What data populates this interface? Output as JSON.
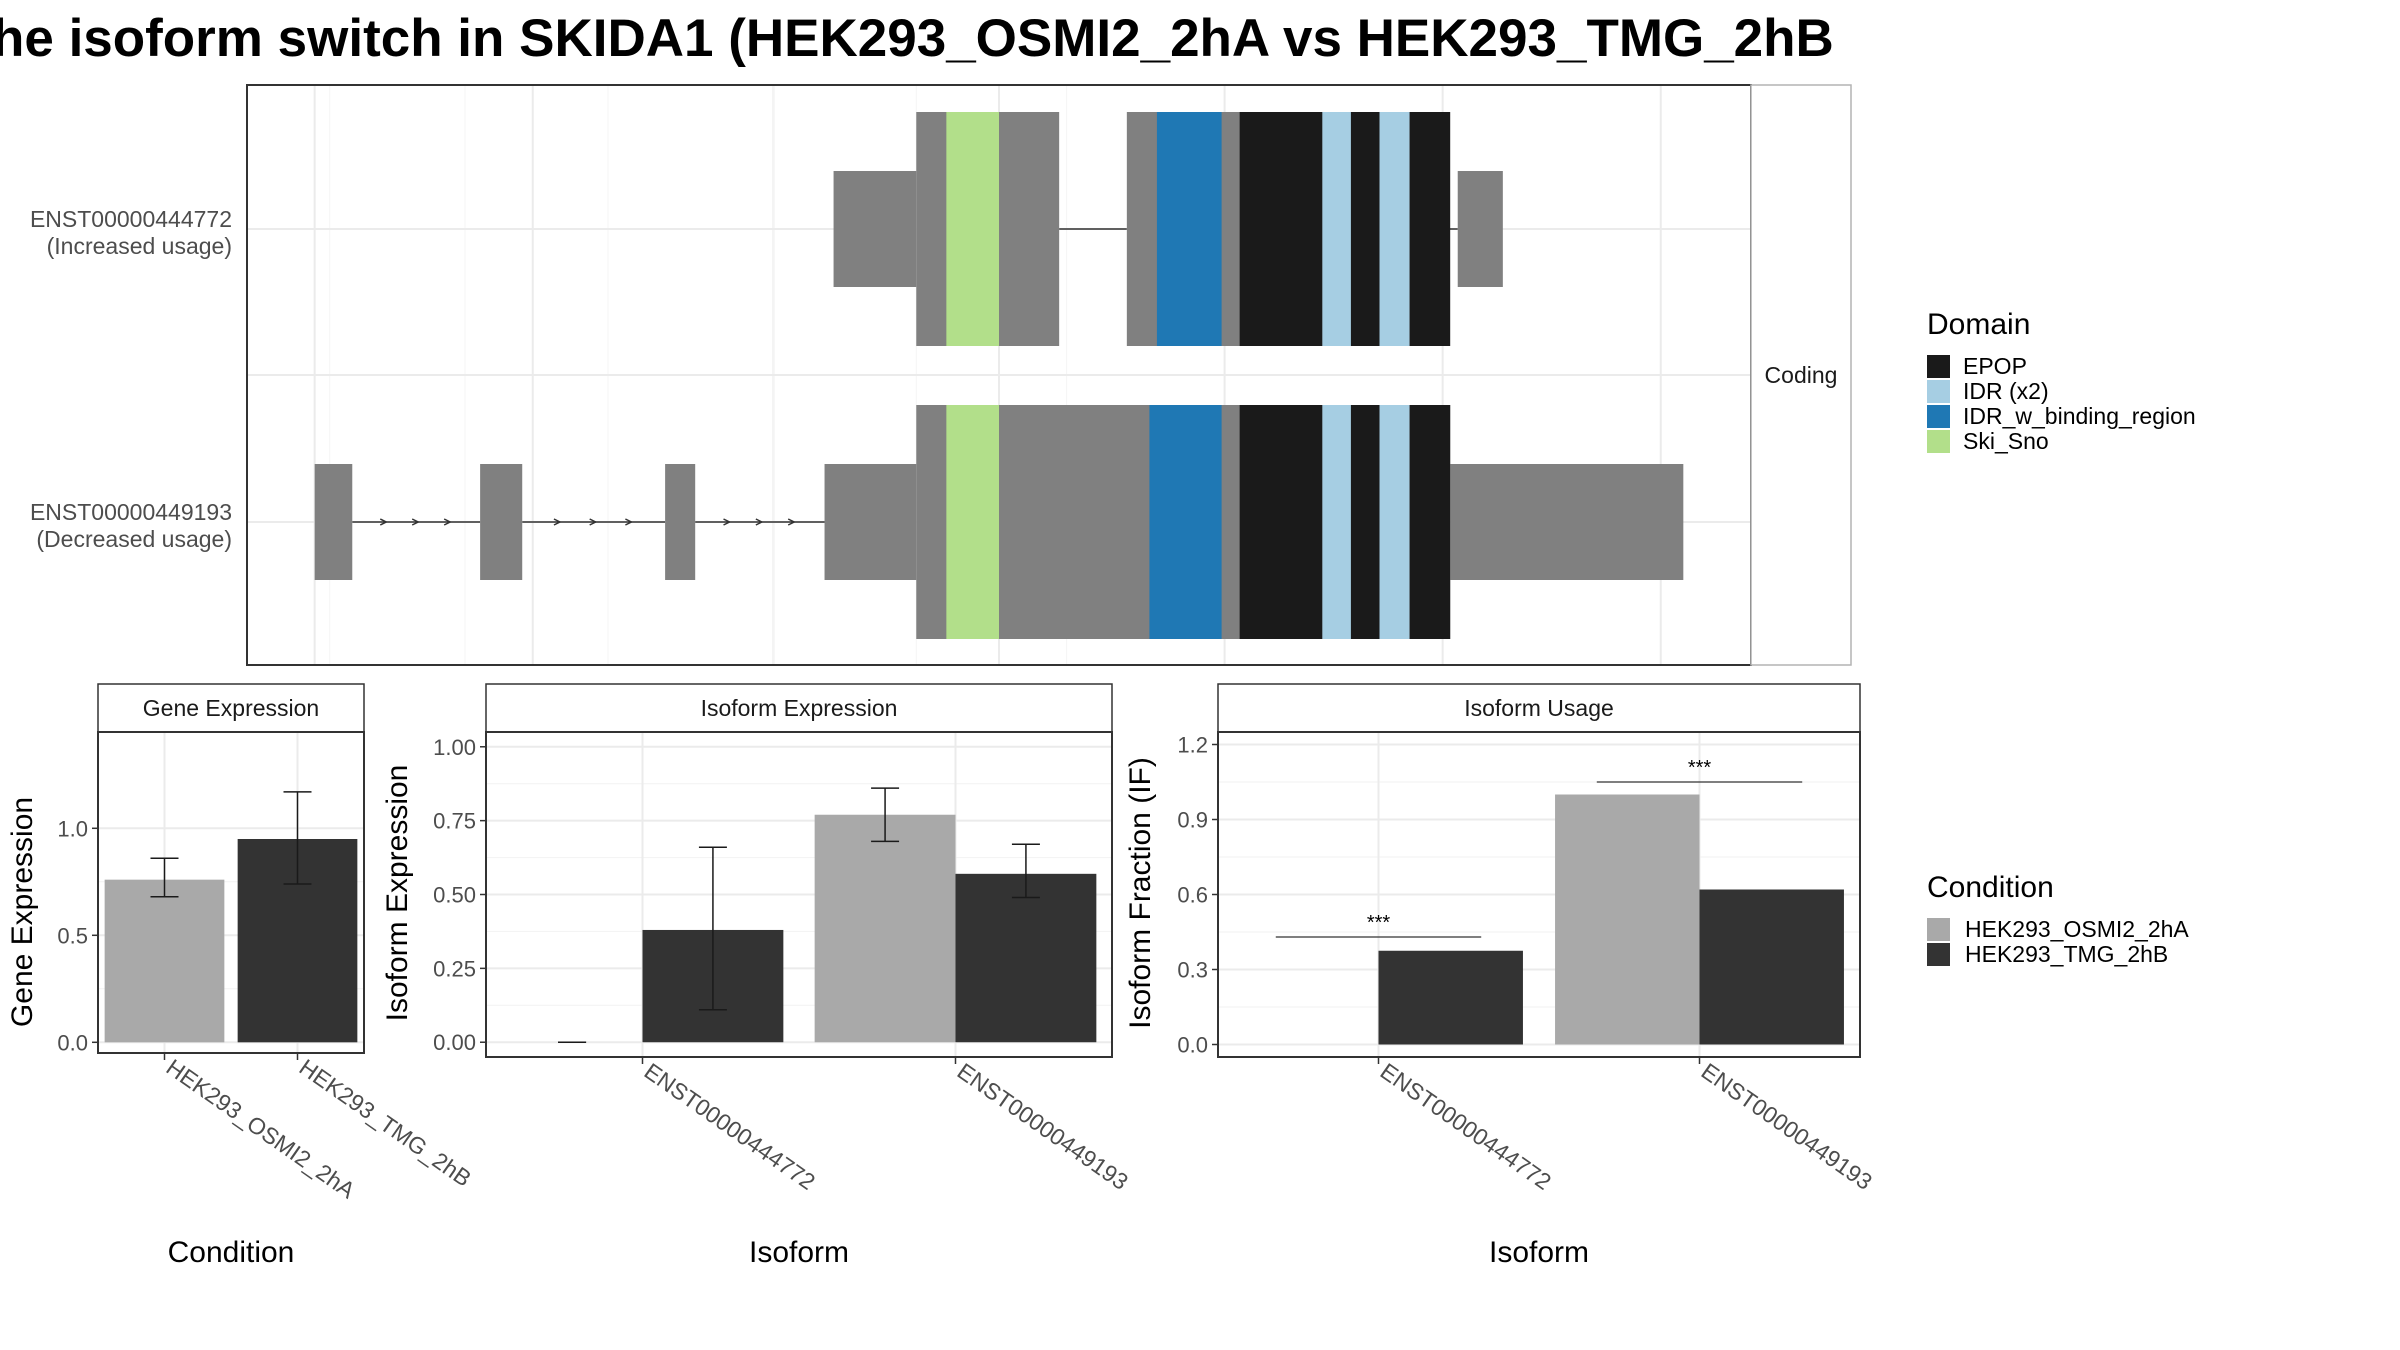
{
  "title": "he isoform switch in SKIDA1 (HEK293_OSMI2_2hA vs HEK293_TMG_2hB",
  "colors": {
    "EPOP": "#1a1a1a",
    "IDR (x2)": "#a6cee3",
    "IDR_w_binding_region": "#1f78b4",
    "Ski_Sno": "#b2df8a",
    "exon": "#808080",
    "cond1": "#a9a9a9",
    "cond2": "#333333"
  },
  "chart_data": [
    {
      "type": "gene-structure",
      "facet_label": "Coding",
      "transcripts": [
        {
          "id": "ENST00000444772",
          "label": "(Increased usage)",
          "utr": [
            [
              0.39,
              0.445
            ],
            [
              0.805,
              0.835
            ]
          ],
          "cds": [
            [
              0.445,
              0.54
            ],
            [
              0.585,
              0.795
            ]
          ],
          "domains": [
            {
              "name": "Ski_Sno",
              "range": [
                0.465,
                0.5
              ]
            },
            {
              "name": "IDR_w_binding_region",
              "range": [
                0.605,
                0.648
              ]
            },
            {
              "name": "EPOP",
              "range": [
                0.66,
                0.715
              ]
            },
            {
              "name": "IDR (x2)",
              "range": [
                0.715,
                0.734
              ]
            },
            {
              "name": "EPOP",
              "range": [
                0.734,
                0.753
              ]
            },
            {
              "name": "IDR (x2)",
              "range": [
                0.753,
                0.773
              ]
            },
            {
              "name": "EPOP",
              "range": [
                0.773,
                0.8
              ]
            }
          ]
        },
        {
          "id": "ENST00000449193",
          "label": "(Decreased usage)",
          "utr": [
            [
              0.045,
              0.07
            ],
            [
              0.155,
              0.183
            ],
            [
              0.278,
              0.298
            ],
            [
              0.384,
              0.445
            ],
            [
              0.8,
              0.955
            ]
          ],
          "cds": [
            [
              0.445,
              0.8
            ]
          ],
          "domains": [
            {
              "name": "Ski_Sno",
              "range": [
                0.465,
                0.5
              ]
            },
            {
              "name": "IDR_w_binding_region",
              "range": [
                0.6,
                0.648
              ]
            },
            {
              "name": "EPOP",
              "range": [
                0.66,
                0.715
              ]
            },
            {
              "name": "IDR (x2)",
              "range": [
                0.715,
                0.734
              ]
            },
            {
              "name": "EPOP",
              "range": [
                0.734,
                0.753
              ]
            },
            {
              "name": "IDR (x2)",
              "range": [
                0.753,
                0.773
              ]
            },
            {
              "name": "EPOP",
              "range": [
                0.773,
                0.8
              ]
            }
          ]
        }
      ],
      "legend": {
        "title": "Domain",
        "entries": [
          "EPOP",
          "IDR (x2)",
          "IDR_w_binding_region",
          "Ski_Sno"
        ],
        "placement": "right"
      }
    },
    {
      "type": "bar",
      "title": "Gene Expression",
      "xlabel": "Condition",
      "ylabel": "Gene Expression",
      "ylim": [
        -0.05,
        1.45
      ],
      "yticks": [
        0.0,
        0.5,
        1.0
      ],
      "ytick_labels": [
        "0.0",
        "0.5",
        "1.0"
      ],
      "categories": [
        "HEK293_OSMI2_2hA",
        "HEK293_TMG_2hB"
      ],
      "values": [
        0.76,
        0.95
      ],
      "errors": [
        [
          0.68,
          0.86
        ],
        [
          0.74,
          1.17
        ]
      ],
      "grid": true
    },
    {
      "type": "bar",
      "title": "Isoform Expression",
      "xlabel": "Isoform",
      "ylabel": "Isoform Expression",
      "ylim": [
        -0.05,
        1.05
      ],
      "yticks": [
        0.0,
        0.25,
        0.5,
        0.75,
        1.0
      ],
      "ytick_labels": [
        "0.00",
        "0.25",
        "0.50",
        "0.75",
        "1.00"
      ],
      "categories": [
        "ENST00000444772",
        "ENST00000449193"
      ],
      "series": [
        {
          "name": "HEK293_OSMI2_2hA",
          "values": [
            0.0,
            0.77
          ],
          "errors": [
            [
              0.0,
              0.0
            ],
            [
              0.68,
              0.86
            ]
          ]
        },
        {
          "name": "HEK293_TMG_2hB",
          "values": [
            0.38,
            0.57
          ],
          "errors": [
            [
              0.11,
              0.66
            ],
            [
              0.49,
              0.67
            ]
          ]
        }
      ],
      "grid": true
    },
    {
      "type": "bar",
      "title": "Isoform Usage",
      "xlabel": "Isoform",
      "ylabel": "Isoform Fraction (IF)",
      "ylim": [
        -0.05,
        1.25
      ],
      "yticks": [
        0.0,
        0.3,
        0.6,
        0.9,
        1.2
      ],
      "ytick_labels": [
        "0.0",
        "0.3",
        "0.6",
        "0.9",
        "1.2"
      ],
      "categories": [
        "ENST00000444772",
        "ENST00000449193"
      ],
      "series": [
        {
          "name": "HEK293_OSMI2_2hA",
          "values": [
            0.0,
            1.0
          ]
        },
        {
          "name": "HEK293_TMG_2hB",
          "values": [
            0.375,
            0.62
          ]
        }
      ],
      "significance": [
        {
          "category": "ENST00000444772",
          "label": "***",
          "y": 0.43
        },
        {
          "category": "ENST00000449193",
          "label": "***",
          "y": 1.05
        }
      ],
      "grid": true
    }
  ],
  "condition_legend": {
    "title": "Condition",
    "entries": [
      "HEK293_OSMI2_2hA",
      "HEK293_TMG_2hB"
    ]
  }
}
